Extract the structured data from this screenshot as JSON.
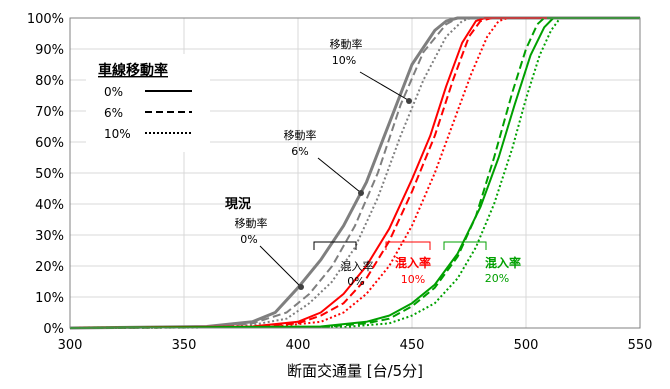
{
  "chart_data": {
    "type": "line",
    "xlabel": "断面交通量 [台/5分]",
    "ylabel": "",
    "xlim": [
      300,
      550
    ],
    "ylim": [
      0,
      100
    ],
    "x_ticks": [
      "300",
      "350",
      "400",
      "450",
      "500",
      "550"
    ],
    "y_ticks": [
      "0%",
      "10%",
      "20%",
      "30%",
      "40%",
      "50%",
      "60%",
      "70%",
      "80%",
      "90%",
      "100%"
    ],
    "grid": true,
    "legend": {
      "title": "車線移動率",
      "placement": "top-left",
      "entries": [
        {
          "label": "0%",
          "dash": "solid"
        },
        {
          "label": "6%",
          "dash": "dashed"
        },
        {
          "label": "10%",
          "dash": "dotted"
        }
      ]
    },
    "colors": {
      "0%": "#7f7f7f",
      "10%": "#ff0000",
      "20%": "#00a000"
    },
    "series": [
      {
        "mix": "0%",
        "move": "0%",
        "dash": "solid",
        "points": [
          [
            300,
            0
          ],
          [
            360,
            0.5
          ],
          [
            380,
            2
          ],
          [
            390,
            5
          ],
          [
            400,
            13
          ],
          [
            410,
            22
          ],
          [
            420,
            33
          ],
          [
            430,
            47
          ],
          [
            440,
            66
          ],
          [
            450,
            85
          ],
          [
            460,
            96
          ],
          [
            465,
            99
          ],
          [
            470,
            100
          ],
          [
            550,
            100
          ]
        ]
      },
      {
        "mix": "0%",
        "move": "6%",
        "dash": "dashed",
        "points": [
          [
            300,
            0
          ],
          [
            360,
            0.3
          ],
          [
            380,
            1.5
          ],
          [
            395,
            5
          ],
          [
            405,
            11
          ],
          [
            415,
            20
          ],
          [
            425,
            33
          ],
          [
            435,
            50
          ],
          [
            445,
            72
          ],
          [
            455,
            89
          ],
          [
            465,
            98
          ],
          [
            470,
            100
          ],
          [
            550,
            100
          ]
        ]
      },
      {
        "mix": "0%",
        "move": "10%",
        "dash": "dotted",
        "points": [
          [
            300,
            0
          ],
          [
            360,
            0.2
          ],
          [
            380,
            1
          ],
          [
            395,
            3
          ],
          [
            405,
            8
          ],
          [
            415,
            15
          ],
          [
            425,
            26
          ],
          [
            435,
            42
          ],
          [
            445,
            62
          ],
          [
            455,
            80
          ],
          [
            465,
            94
          ],
          [
            472,
            99
          ],
          [
            476,
            100
          ],
          [
            550,
            100
          ]
        ]
      },
      {
        "mix": "10%",
        "move": "0%",
        "dash": "solid",
        "points": [
          [
            300,
            0
          ],
          [
            380,
            0.5
          ],
          [
            400,
            2
          ],
          [
            410,
            5
          ],
          [
            420,
            11
          ],
          [
            430,
            20
          ],
          [
            440,
            32
          ],
          [
            450,
            48
          ],
          [
            458,
            62
          ],
          [
            465,
            78
          ],
          [
            472,
            92
          ],
          [
            478,
            99
          ],
          [
            482,
            100
          ],
          [
            550,
            100
          ]
        ]
      },
      {
        "mix": "10%",
        "move": "6%",
        "dash": "dashed",
        "points": [
          [
            300,
            0
          ],
          [
            380,
            0.3
          ],
          [
            400,
            1.5
          ],
          [
            410,
            4
          ],
          [
            420,
            8
          ],
          [
            430,
            16
          ],
          [
            440,
            28
          ],
          [
            450,
            44
          ],
          [
            460,
            62
          ],
          [
            468,
            80
          ],
          [
            475,
            94
          ],
          [
            480,
            99
          ],
          [
            485,
            100
          ],
          [
            550,
            100
          ]
        ]
      },
      {
        "mix": "10%",
        "move": "10%",
        "dash": "dotted",
        "points": [
          [
            300,
            0
          ],
          [
            390,
            0.5
          ],
          [
            410,
            2
          ],
          [
            420,
            5
          ],
          [
            430,
            11
          ],
          [
            440,
            20
          ],
          [
            450,
            33
          ],
          [
            460,
            50
          ],
          [
            468,
            66
          ],
          [
            476,
            82
          ],
          [
            483,
            94
          ],
          [
            488,
            99
          ],
          [
            492,
            100
          ],
          [
            550,
            100
          ]
        ]
      },
      {
        "mix": "20%",
        "move": "0%",
        "dash": "solid",
        "points": [
          [
            300,
            0
          ],
          [
            410,
            0.5
          ],
          [
            430,
            2
          ],
          [
            440,
            4
          ],
          [
            450,
            8
          ],
          [
            460,
            14
          ],
          [
            470,
            24
          ],
          [
            480,
            39
          ],
          [
            488,
            55
          ],
          [
            495,
            72
          ],
          [
            502,
            88
          ],
          [
            508,
            97
          ],
          [
            512,
            100
          ],
          [
            550,
            100
          ]
        ]
      },
      {
        "mix": "20%",
        "move": "6%",
        "dash": "dashed",
        "points": [
          [
            300,
            0
          ],
          [
            410,
            0.3
          ],
          [
            430,
            1.5
          ],
          [
            440,
            3
          ],
          [
            450,
            7
          ],
          [
            460,
            13
          ],
          [
            470,
            23
          ],
          [
            478,
            36
          ],
          [
            486,
            55
          ],
          [
            494,
            76
          ],
          [
            500,
            90
          ],
          [
            505,
            98
          ],
          [
            508,
            100
          ],
          [
            550,
            100
          ]
        ]
      },
      {
        "mix": "20%",
        "move": "10%",
        "dash": "dotted",
        "points": [
          [
            300,
            0
          ],
          [
            420,
            0.3
          ],
          [
            440,
            1.5
          ],
          [
            450,
            4
          ],
          [
            460,
            8
          ],
          [
            470,
            16
          ],
          [
            478,
            26
          ],
          [
            486,
            40
          ],
          [
            494,
            58
          ],
          [
            500,
            74
          ],
          [
            506,
            88
          ],
          [
            511,
            96
          ],
          [
            515,
            100
          ],
          [
            550,
            100
          ]
        ]
      }
    ],
    "annotations": [
      {
        "text": "現況",
        "color": "#000000",
        "bold": true
      },
      {
        "text": "移動率",
        "color": "#000000"
      },
      {
        "text": "0%",
        "color": "#000000"
      },
      {
        "text": "移動率",
        "color": "#000000"
      },
      {
        "text": "6%",
        "color": "#000000"
      },
      {
        "text": "移動率",
        "color": "#000000"
      },
      {
        "text": "10%",
        "color": "#000000"
      },
      {
        "text": "混入率",
        "color": "#000000"
      },
      {
        "text": "0%",
        "color": "#000000"
      },
      {
        "text": "混入率",
        "color": "#ff0000",
        "bold": true
      },
      {
        "text": "10%",
        "color": "#ff0000"
      },
      {
        "text": "混入率",
        "color": "#00a000",
        "bold": true
      },
      {
        "text": "20%",
        "color": "#00a000"
      }
    ]
  }
}
